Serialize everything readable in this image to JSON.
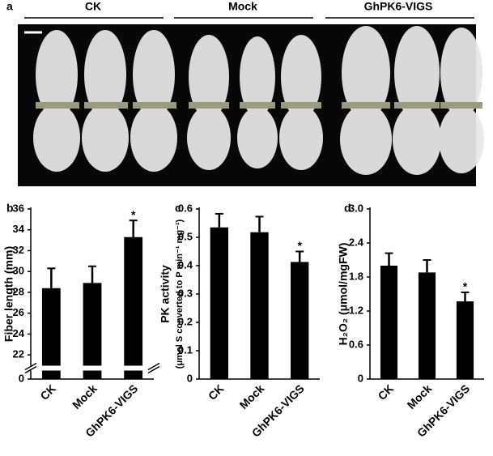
{
  "panel_a": {
    "label": "a",
    "groups": [
      "CK",
      "Mock",
      "GhPK6-VIGS"
    ]
  },
  "chart_data": [
    {
      "type": "bar",
      "panel": "b",
      "y_label": "Fiber length (mm)",
      "categories": [
        "CK",
        "Mock",
        "GhPK6-VIGS"
      ],
      "values": [
        28.4,
        28.9,
        33.3
      ],
      "errors": [
        1.9,
        1.6,
        1.6
      ],
      "annotations": [
        null,
        null,
        "*"
      ],
      "color": "#000000",
      "ylim": [
        0,
        36
      ],
      "axis_break": [
        1,
        21
      ],
      "yticks": [
        0,
        22,
        24,
        26,
        28,
        30,
        32,
        34,
        36
      ]
    },
    {
      "type": "bar",
      "panel": "c",
      "y_label": "PK activity",
      "y_sublabel": "(μmol S converted to P min⁻¹ mg⁻¹)",
      "categories": [
        "CK",
        "Mock",
        "GhPK6-VIGS"
      ],
      "values": [
        0.535,
        0.518,
        0.413
      ],
      "errors": [
        0.048,
        0.055,
        0.037
      ],
      "annotations": [
        null,
        null,
        "*"
      ],
      "color": "#000000",
      "ylim": [
        0,
        0.6
      ],
      "yticks": [
        0,
        0.1,
        0.2,
        0.3,
        0.4,
        0.5,
        0.6
      ]
    },
    {
      "type": "bar",
      "panel": "d",
      "y_label": "H₂O₂ (μmol/mgFW)",
      "categories": [
        "CK",
        "Mock",
        "GhPK6-VIGS"
      ],
      "values": [
        2.0,
        1.88,
        1.37
      ],
      "errors": [
        0.22,
        0.22,
        0.16
      ],
      "annotations": [
        null,
        null,
        "*"
      ],
      "color": "#000000",
      "ylim": [
        0,
        3
      ],
      "yticks": [
        0,
        {
          "value": 0.6,
          "label": "0.6"
        },
        {
          "value": 1.2,
          "label": "1.2"
        },
        {
          "value": 1.8,
          "label": "1.8"
        },
        {
          "value": 2.4,
          "label": "2.4"
        },
        {
          "value": 3,
          "label": "3.0"
        }
      ]
    }
  ]
}
